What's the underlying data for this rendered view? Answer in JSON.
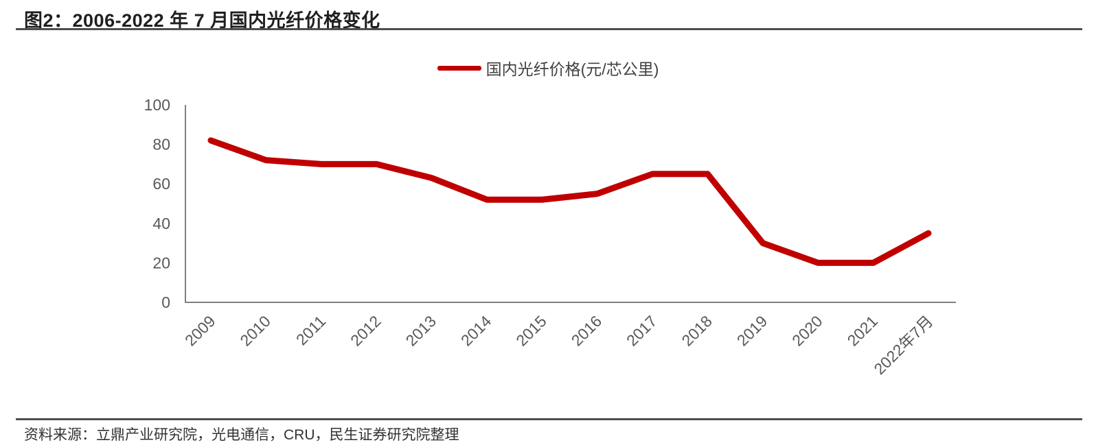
{
  "header": {
    "title": "图2：2006-2022 年 7 月国内光纤价格变化"
  },
  "legend": {
    "label": "国内光纤价格(元/芯公里)"
  },
  "footer": {
    "source": "资料来源：立鼎产业研究院，光电通信，CRU，民生证券研究院整理"
  },
  "chart_data": {
    "type": "line",
    "title": "图2：2006-2022 年 7 月国内光纤价格变化",
    "categories": [
      "2009",
      "2010",
      "2011",
      "2012",
      "2013",
      "2014",
      "2015",
      "2016",
      "2017",
      "2018",
      "2019",
      "2020",
      "2021",
      "2022年7月"
    ],
    "series": [
      {
        "name": "国内光纤价格(元/芯公里)",
        "values": [
          82,
          72,
          70,
          70,
          63,
          52,
          52,
          55,
          65,
          65,
          30,
          20,
          20,
          35
        ]
      }
    ],
    "xlabel": "",
    "ylabel": "",
    "ylim": [
      0,
      100
    ],
    "yticks": [
      0,
      20,
      40,
      60,
      80,
      100
    ],
    "grid": false,
    "legend_position": "top-center",
    "line_color": "#c00000",
    "axis_color": "#7f7f7f",
    "tick_label_color": "#595959"
  }
}
